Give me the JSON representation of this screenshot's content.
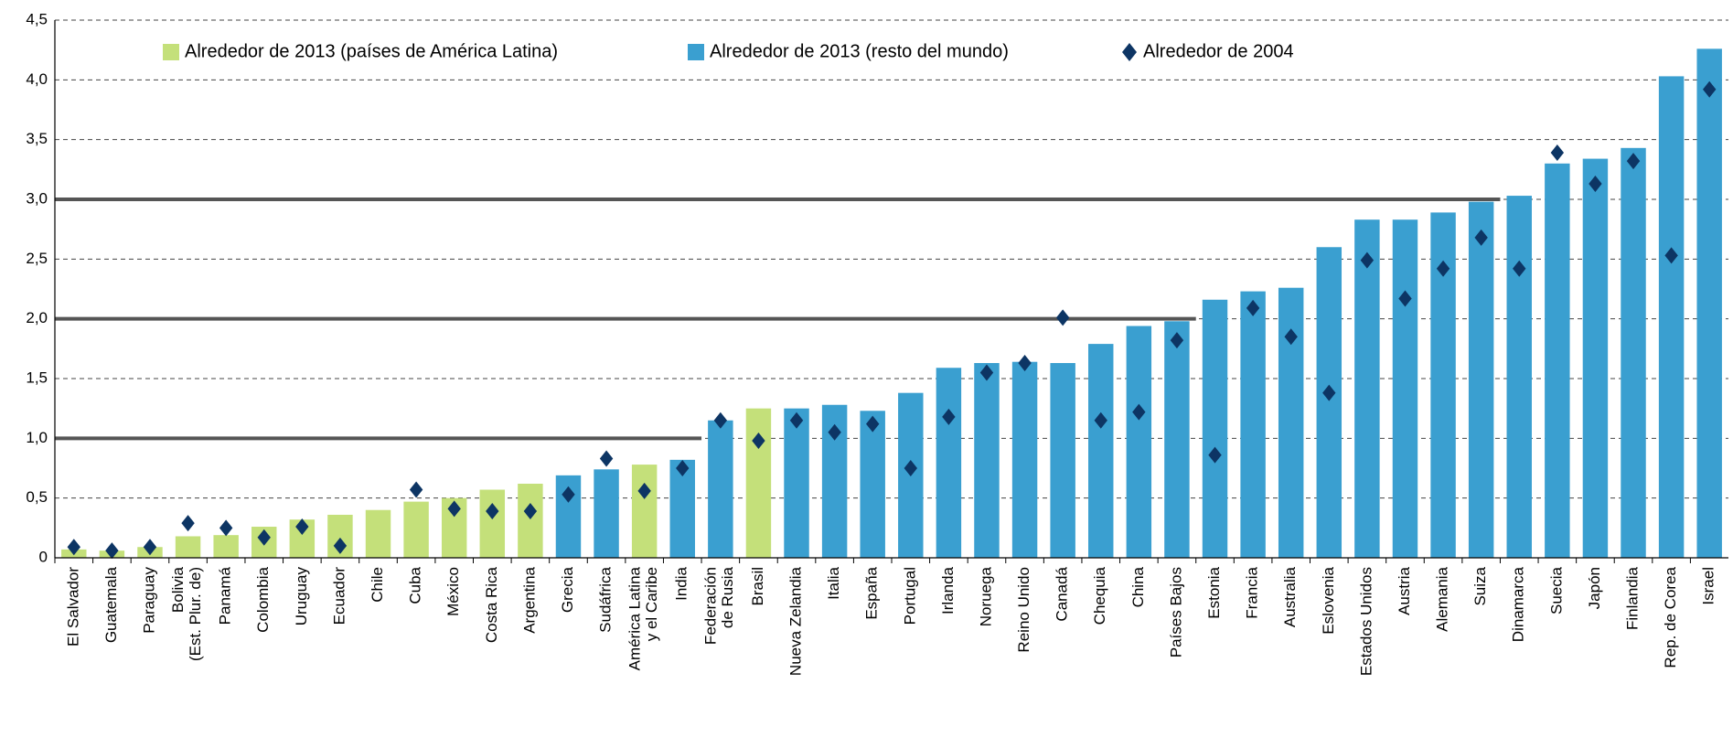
{
  "chart_data": {
    "type": "bar",
    "categories": [
      "El Salvador",
      "Guatemala",
      "Paraguay",
      "Bolivia\n(Est. Plur. de)",
      "Panamá",
      "Colombia",
      "Uruguay",
      "Ecuador",
      "Chile",
      "Cuba",
      "México",
      "Costa Rica",
      "Argentina",
      "Grecia",
      "Sudáfrica",
      "América Latina\ny el Caribe",
      "India",
      "Federación\nde Rusia",
      "Brasil",
      "Nueva Zelandia",
      "Italia",
      "España",
      "Portugal",
      "Irlanda",
      "Noruega",
      "Reino Unido",
      "Canadá",
      "Chequia",
      "China",
      "Países Bajos",
      "Estonia",
      "Francia",
      "Australia",
      "Eslovenia",
      "Estados Unidos",
      "Austria",
      "Alemania",
      "Suiza",
      "Dinamarca",
      "Suecia",
      "Japón",
      "Finlandia",
      "Rep. de Corea",
      "Israel"
    ],
    "series": [
      {
        "name": "Alrededor de 2013 (países de América Latina)",
        "type": "bar",
        "color": "#c4e07a",
        "values": [
          0.07,
          0.06,
          0.09,
          0.18,
          0.19,
          0.26,
          0.32,
          0.36,
          0.4,
          0.47,
          0.5,
          0.57,
          0.62,
          null,
          null,
          0.78,
          null,
          null,
          1.25,
          null,
          null,
          null,
          null,
          null,
          null,
          null,
          null,
          null,
          null,
          null,
          null,
          null,
          null,
          null,
          null,
          null,
          null,
          null,
          null,
          null,
          null,
          null,
          null,
          null
        ]
      },
      {
        "name": "Alrededor de 2013 (resto del mundo)",
        "type": "bar",
        "color": "#3a9fd0",
        "values": [
          null,
          null,
          null,
          null,
          null,
          null,
          null,
          null,
          null,
          null,
          null,
          null,
          null,
          0.69,
          0.74,
          null,
          0.82,
          1.15,
          null,
          1.25,
          1.28,
          1.23,
          1.38,
          1.59,
          1.63,
          1.64,
          1.63,
          1.79,
          1.94,
          1.98,
          2.16,
          2.23,
          2.26,
          2.6,
          2.83,
          2.83,
          2.89,
          2.98,
          3.03,
          3.3,
          3.34,
          3.43,
          4.03,
          4.26
        ]
      },
      {
        "name": "Alrededor de 2004",
        "type": "scatter",
        "color": "#0d3564",
        "values": [
          0.09,
          0.06,
          0.09,
          0.29,
          0.25,
          0.17,
          0.26,
          0.1,
          null,
          0.57,
          0.41,
          0.39,
          0.39,
          0.53,
          0.83,
          0.56,
          0.75,
          1.15,
          0.98,
          1.15,
          1.05,
          1.12,
          0.75,
          1.18,
          1.55,
          1.63,
          2.01,
          1.15,
          1.22,
          1.82,
          0.86,
          2.09,
          1.85,
          1.38,
          2.49,
          2.17,
          2.42,
          2.68,
          2.42,
          3.39,
          3.13,
          3.32,
          2.53,
          3.92
        ]
      }
    ],
    "reference_lines": [
      {
        "value": 1,
        "until": "India"
      },
      {
        "value": 2,
        "until": "Países Bajos"
      },
      {
        "value": 3,
        "until": "Suiza"
      }
    ],
    "ylim": [
      0,
      4.5
    ],
    "yticks": [
      0,
      {
        "value": 0.5,
        "label": "0,5"
      },
      {
        "value": 1,
        "label": "1,0"
      },
      {
        "value": 1.5,
        "label": "1,5"
      },
      {
        "value": 2,
        "label": "2,0"
      },
      {
        "value": 2.5,
        "label": "2,5"
      },
      {
        "value": 3,
        "label": "3,0"
      },
      {
        "value": 3.5,
        "label": "3,5"
      },
      {
        "value": 4,
        "label": "4,0"
      },
      {
        "value": 4.5,
        "label": "4,5"
      }
    ],
    "grid": true
  }
}
